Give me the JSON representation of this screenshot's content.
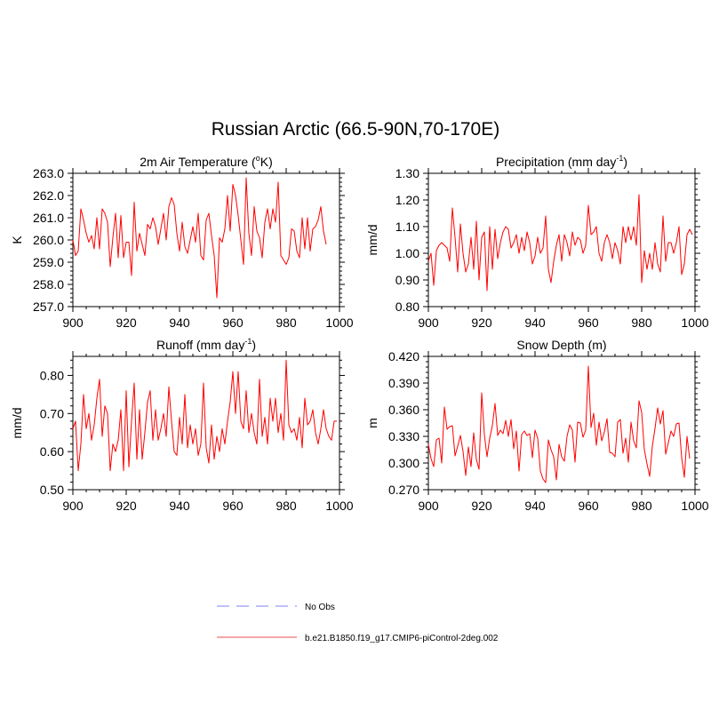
{
  "figure": {
    "title": "Russian Arctic (66.5-90N,70-170E)"
  },
  "legend": {
    "placement": "bottom-center",
    "entries": [
      {
        "label": "No Obs",
        "color": "#9b9bf5",
        "dash": "dashed"
      },
      {
        "label": "b.e21.B1850.f19_g17.CMIP6-piControl-2deg.002",
        "color": "#f07070",
        "dash": "solid"
      }
    ]
  },
  "chart_data": [
    {
      "type": "line",
      "title": "2m Air Temperature (",
      "title_sup": "o",
      "title_after": "K)",
      "xlabel": "",
      "ylabel": "K",
      "xlim": [
        900,
        1000
      ],
      "xticks": [
        900,
        920,
        940,
        960,
        980,
        1000
      ],
      "xticklabels": [
        "900",
        "920",
        "940",
        "960",
        "980",
        "1000"
      ],
      "ylim": [
        257.0,
        263.0
      ],
      "yticks": [
        257.0,
        258.0,
        259.0,
        260.0,
        261.0,
        262.0,
        263.0
      ],
      "yticklabels": [
        "257.0",
        "258.0",
        "259.0",
        "260.0",
        "261.0",
        "262.0",
        "263.0"
      ],
      "series": [
        {
          "name": "b.e21.B1850.f19_g17.CMIP6-piControl-2deg.002",
          "color": "#ff0000",
          "x": [
            900,
            901,
            902,
            903,
            904,
            905,
            906,
            907,
            908,
            909,
            910,
            911,
            912,
            913,
            914,
            915,
            916,
            917,
            918,
            919,
            920,
            921,
            922,
            923,
            924,
            925,
            926,
            927,
            928,
            929,
            930,
            931,
            932,
            933,
            934,
            935,
            936,
            937,
            938,
            939,
            940,
            941,
            942,
            943,
            944,
            945,
            946,
            947,
            948,
            949,
            950,
            951,
            952,
            953,
            954,
            955,
            956,
            957,
            958,
            959,
            960,
            961,
            962,
            963,
            964,
            965,
            966,
            967,
            968,
            969,
            970,
            971,
            972,
            973,
            974,
            975,
            976,
            977,
            978,
            979,
            980,
            981,
            982,
            983,
            984,
            985,
            986,
            987,
            988,
            989,
            990,
            991,
            992,
            993,
            994,
            995,
            996,
            997,
            998,
            999
          ],
          "values": [
            260.0,
            259.3,
            259.5,
            261.4,
            260.9,
            260.3,
            259.9,
            260.2,
            259.6,
            261.0,
            259.6,
            261.4,
            261.2,
            260.8,
            258.8,
            260.1,
            261.2,
            259.2,
            261.1,
            259.2,
            259.9,
            259.9,
            258.4,
            261.7,
            259.5,
            260.3,
            259.8,
            259.3,
            260.7,
            260.5,
            261.0,
            260.6,
            259.8,
            260.5,
            261.2,
            260.0,
            261.5,
            261.9,
            261.6,
            260.3,
            259.5,
            260.8,
            259.7,
            259.4,
            260.0,
            260.6,
            259.9,
            261.2,
            259.3,
            259.1,
            260.9,
            261.2,
            260.2,
            259.3,
            257.4,
            260.1,
            259.9,
            260.5,
            262.0,
            260.4,
            262.5,
            262.0,
            261.1,
            260.0,
            258.9,
            262.8,
            260.3,
            259.3,
            261.5,
            260.4,
            260.1,
            259.2,
            260.8,
            261.4,
            260.5,
            261.4,
            260.8,
            262.6,
            259.3,
            259.1,
            258.9,
            259.2,
            260.5,
            260.4,
            259.5,
            259.2,
            261.0,
            259.6,
            261.0,
            259.5,
            260.5,
            260.6,
            260.9,
            261.5,
            260.4,
            259.8,
            null,
            null,
            null,
            null
          ]
        }
      ]
    },
    {
      "type": "line",
      "title": "Precipitation (mm day",
      "title_sup": "-1",
      "title_after": ")",
      "xlabel": "",
      "ylabel": "mm/d",
      "xlim": [
        900,
        1000
      ],
      "xticks": [
        900,
        920,
        940,
        960,
        980,
        1000
      ],
      "xticklabels": [
        "900",
        "920",
        "940",
        "960",
        "980",
        "1000"
      ],
      "ylim": [
        0.8,
        1.3
      ],
      "yticks": [
        0.8,
        0.9,
        1.0,
        1.1,
        1.2,
        1.3
      ],
      "yticklabels": [
        "0.80",
        "0.90",
        "1.00",
        "1.10",
        "1.20",
        "1.30"
      ],
      "series": [
        {
          "name": "b.e21.B1850.f19_g17.CMIP6-piControl-2deg.002",
          "color": "#ff0000",
          "x": [
            900,
            901,
            902,
            903,
            904,
            905,
            906,
            907,
            908,
            909,
            910,
            911,
            912,
            913,
            914,
            915,
            916,
            917,
            918,
            919,
            920,
            921,
            922,
            923,
            924,
            925,
            926,
            927,
            928,
            929,
            930,
            931,
            932,
            933,
            934,
            935,
            936,
            937,
            938,
            939,
            940,
            941,
            942,
            943,
            944,
            945,
            946,
            947,
            948,
            949,
            950,
            951,
            952,
            953,
            954,
            955,
            956,
            957,
            958,
            959,
            960,
            961,
            962,
            963,
            964,
            965,
            966,
            967,
            968,
            969,
            970,
            971,
            972,
            973,
            974,
            975,
            976,
            977,
            978,
            979,
            980,
            981,
            982,
            983,
            984,
            985,
            986,
            987,
            988,
            989,
            990,
            991,
            992,
            993,
            994,
            995,
            996,
            997,
            998,
            999
          ],
          "values": [
            0.97,
            1.0,
            0.88,
            1.01,
            1.03,
            1.04,
            1.03,
            1.02,
            0.97,
            1.17,
            1.06,
            0.93,
            1.11,
            1.0,
            0.93,
            0.96,
            1.06,
            0.94,
            1.12,
            0.9,
            1.06,
            1.08,
            0.86,
            1.1,
            0.94,
            1.09,
            0.98,
            1.04,
            1.08,
            1.1,
            1.09,
            1.02,
            1.04,
            1.07,
            1.0,
            1.06,
            1.01,
            1.08,
            1.04,
            0.96,
            0.99,
            1.06,
            1.0,
            1.02,
            1.14,
            0.94,
            0.89,
            0.97,
            1.03,
            1.07,
            0.97,
            1.07,
            1.04,
            0.99,
            1.08,
            1.03,
            1.06,
            1.05,
            1.0,
            1.03,
            1.18,
            1.07,
            1.08,
            1.1,
            1.0,
            0.97,
            1.04,
            1.07,
            1.04,
            0.98,
            1.04,
            1.01,
            0.96,
            1.1,
            1.04,
            1.1,
            1.05,
            1.1,
            1.03,
            1.22,
            0.89,
            1.01,
            0.94,
            1.0,
            0.94,
            1.04,
            0.96,
            0.93,
            1.14,
            0.97,
            1.04,
            1.04,
            1.0,
            1.04,
            1.1,
            0.92,
            0.96,
            1.07,
            1.09,
            1.07
          ]
        }
      ]
    },
    {
      "type": "line",
      "title": "Runoff (mm day",
      "title_sup": "-1",
      "title_after": ")",
      "xlabel": "",
      "ylabel": "mm/d",
      "xlim": [
        900,
        1000
      ],
      "xticks": [
        900,
        920,
        940,
        960,
        980,
        1000
      ],
      "xticklabels": [
        "900",
        "920",
        "940",
        "960",
        "980",
        "1000"
      ],
      "ylim": [
        0.5,
        0.85
      ],
      "yticks": [
        0.5,
        0.6,
        0.7,
        0.8
      ],
      "yticklabels": [
        "0.50",
        "0.60",
        "0.70",
        "0.80"
      ],
      "series": [
        {
          "name": "b.e21.B1850.f19_g17.CMIP6-piControl-2deg.002",
          "color": "#ff0000",
          "x": [
            900,
            901,
            902,
            903,
            904,
            905,
            906,
            907,
            908,
            909,
            910,
            911,
            912,
            913,
            914,
            915,
            916,
            917,
            918,
            919,
            920,
            921,
            922,
            923,
            924,
            925,
            926,
            927,
            928,
            929,
            930,
            931,
            932,
            933,
            934,
            935,
            936,
            937,
            938,
            939,
            940,
            941,
            942,
            943,
            944,
            945,
            946,
            947,
            948,
            949,
            950,
            951,
            952,
            953,
            954,
            955,
            956,
            957,
            958,
            959,
            960,
            961,
            962,
            963,
            964,
            965,
            966,
            967,
            968,
            969,
            970,
            971,
            972,
            973,
            974,
            975,
            976,
            977,
            978,
            979,
            980,
            981,
            982,
            983,
            984,
            985,
            986,
            987,
            988,
            989,
            990,
            991,
            992,
            993,
            994,
            995,
            996,
            997,
            998,
            999
          ],
          "values": [
            0.66,
            0.68,
            0.55,
            0.62,
            0.75,
            0.66,
            0.7,
            0.63,
            0.67,
            0.74,
            0.79,
            0.64,
            0.72,
            0.7,
            0.55,
            0.62,
            0.6,
            0.63,
            0.71,
            0.55,
            0.76,
            0.56,
            0.68,
            0.78,
            0.58,
            0.71,
            0.58,
            0.65,
            0.73,
            0.76,
            0.63,
            0.71,
            0.63,
            0.66,
            0.7,
            0.64,
            0.77,
            0.68,
            0.6,
            0.59,
            0.69,
            0.62,
            0.75,
            0.61,
            0.67,
            0.62,
            0.66,
            0.59,
            0.62,
            0.78,
            0.61,
            0.57,
            0.67,
            0.58,
            0.64,
            0.6,
            0.66,
            0.62,
            0.68,
            0.73,
            0.81,
            0.7,
            0.81,
            0.68,
            0.66,
            0.76,
            0.65,
            0.7,
            0.65,
            0.62,
            0.79,
            0.64,
            0.69,
            0.62,
            0.74,
            0.68,
            0.74,
            0.65,
            0.7,
            0.63,
            0.84,
            0.67,
            0.65,
            0.66,
            0.63,
            0.69,
            0.61,
            0.74,
            0.67,
            0.68,
            0.71,
            0.65,
            0.62,
            0.66,
            0.71,
            0.66,
            0.64,
            0.63,
            0.68,
            0.68
          ]
        }
      ]
    },
    {
      "type": "line",
      "title": "Snow Depth (m)",
      "title_sup": "",
      "title_after": "",
      "xlabel": "",
      "ylabel": "m",
      "xlim": [
        900,
        1000
      ],
      "xticks": [
        900,
        920,
        940,
        960,
        980,
        1000
      ],
      "xticklabels": [
        "900",
        "920",
        "940",
        "960",
        "980",
        "1000"
      ],
      "ylim": [
        0.27,
        0.42
      ],
      "yticks": [
        0.27,
        0.3,
        0.33,
        0.36,
        0.39,
        0.42
      ],
      "yticklabels": [
        "0.270",
        "0.300",
        "0.330",
        "0.360",
        "0.390",
        "0.420"
      ],
      "series": [
        {
          "name": "b.e21.B1850.f19_g17.CMIP6-piControl-2deg.002",
          "color": "#ff0000",
          "x": [
            900,
            901,
            902,
            903,
            904,
            905,
            906,
            907,
            908,
            909,
            910,
            911,
            912,
            913,
            914,
            915,
            916,
            917,
            918,
            919,
            920,
            921,
            922,
            923,
            924,
            925,
            926,
            927,
            928,
            929,
            930,
            931,
            932,
            933,
            934,
            935,
            936,
            937,
            938,
            939,
            940,
            941,
            942,
            943,
            944,
            945,
            946,
            947,
            948,
            949,
            950,
            951,
            952,
            953,
            954,
            955,
            956,
            957,
            958,
            959,
            960,
            961,
            962,
            963,
            964,
            965,
            966,
            967,
            968,
            969,
            970,
            971,
            972,
            973,
            974,
            975,
            976,
            977,
            978,
            979,
            980,
            981,
            982,
            983,
            984,
            985,
            986,
            987,
            988,
            989,
            990,
            991,
            992,
            993,
            994,
            995,
            996,
            997,
            998,
            999
          ],
          "values": [
            0.321,
            0.305,
            0.296,
            0.326,
            0.328,
            0.3,
            0.363,
            0.338,
            0.341,
            0.342,
            0.308,
            0.319,
            0.331,
            0.313,
            0.286,
            0.318,
            0.296,
            0.334,
            0.304,
            0.293,
            0.379,
            0.332,
            0.307,
            0.328,
            0.342,
            0.367,
            0.331,
            0.337,
            0.333,
            0.348,
            0.33,
            0.349,
            0.316,
            0.336,
            0.291,
            0.332,
            0.336,
            0.331,
            0.333,
            0.306,
            0.337,
            0.328,
            0.291,
            0.282,
            0.278,
            0.326,
            0.315,
            0.307,
            0.281,
            0.321,
            0.307,
            0.302,
            0.33,
            0.343,
            0.337,
            0.301,
            0.346,
            0.345,
            0.329,
            0.337,
            0.409,
            0.34,
            0.356,
            0.32,
            0.346,
            0.325,
            0.335,
            0.35,
            0.312,
            0.311,
            0.307,
            0.346,
            0.349,
            0.311,
            0.328,
            0.301,
            0.346,
            0.325,
            0.317,
            0.37,
            0.357,
            0.315,
            0.299,
            0.285,
            0.319,
            0.339,
            0.362,
            0.344,
            0.359,
            0.31,
            0.323,
            0.336,
            0.33,
            0.344,
            0.345,
            0.306,
            0.284,
            0.33,
            0.305,
            null
          ]
        }
      ]
    }
  ]
}
